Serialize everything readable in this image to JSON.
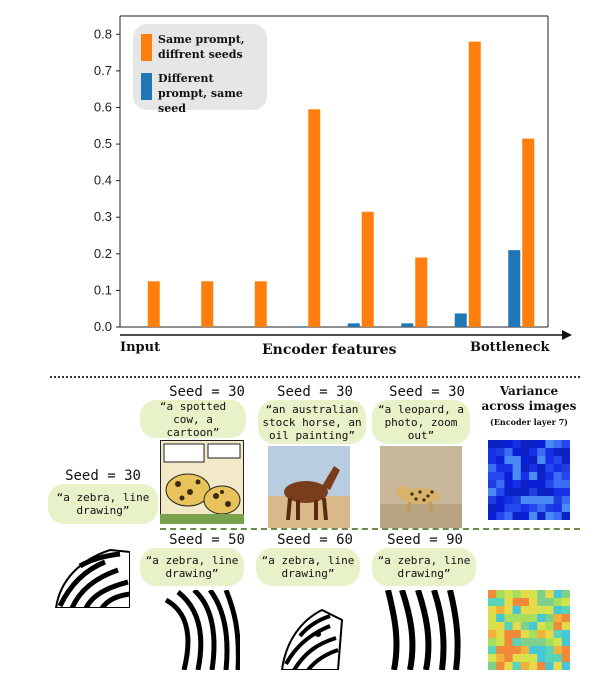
{
  "chart_data": {
    "type": "bar",
    "xlabel": "Encoder features",
    "x_start_label": "Input",
    "x_end_label": "Bottleneck",
    "ylim": [
      0,
      0.85
    ],
    "yticks": [
      "0.0",
      "0.1",
      "0.2",
      "0.3",
      "0.4",
      "0.5",
      "0.6",
      "0.7",
      "0.8"
    ],
    "grid": false,
    "legend_position": "top-left",
    "series": [
      {
        "name": "Same prompt, diffrent seeds",
        "color": "#ff7f0e",
        "values": [
          0.125,
          0.125,
          0.125,
          0.595,
          0.315,
          0.19,
          0.78,
          0.515
        ]
      },
      {
        "name": "Different prompt, same seed",
        "color": "#1f77b4",
        "values": [
          0.0,
          0.0,
          0.0,
          0.002,
          0.01,
          0.01,
          0.037,
          0.21
        ]
      }
    ]
  },
  "legend": {
    "orange_label": "Same prompt, diffrent seeds",
    "blue_label": "Different prompt, same seed",
    "orange_color": "#ff7f0e",
    "blue_color": "#1f77b4"
  },
  "examples": {
    "left": {
      "seed": "Seed = 30",
      "prompt": "“a zebra, line drawing”"
    },
    "top": [
      {
        "seed": "Seed = 30",
        "prompt": "“a spotted cow, a cartoon”"
      },
      {
        "seed": "Seed = 30",
        "prompt": "“an australian stock horse, an oil painting”"
      },
      {
        "seed": "Seed = 30",
        "prompt": "“a leopard, a photo, zoom out”"
      }
    ],
    "bottom": [
      {
        "seed": "Seed = 50",
        "prompt": "“a zebra, line drawing”"
      },
      {
        "seed": "Seed = 60",
        "prompt": "“a zebra, line drawing”"
      },
      {
        "seed": "Seed = 90",
        "prompt": "“a zebra, line drawing”"
      }
    ],
    "variance_title": "Variance across images",
    "variance_subtitle": "(Encoder layer 7)"
  }
}
